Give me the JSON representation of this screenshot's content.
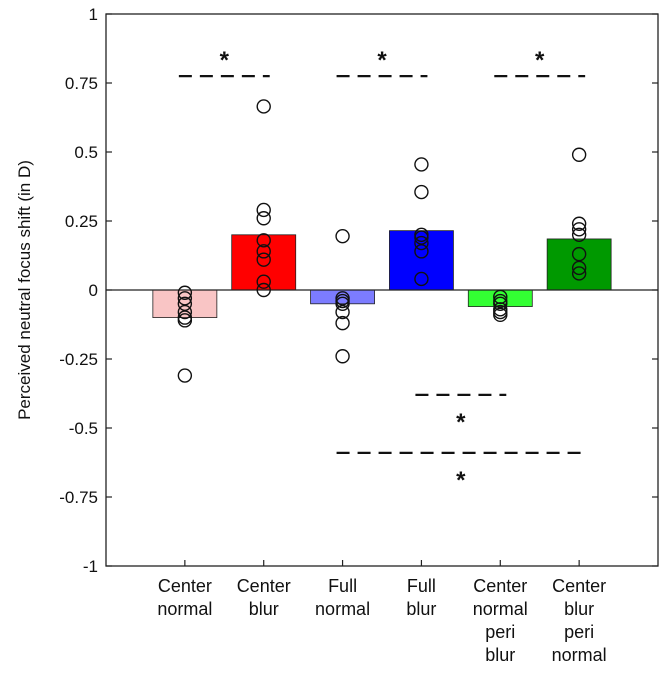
{
  "chart_data": {
    "type": "bar",
    "ylabel": "Perceived neutral focus shift (in D)",
    "ylim": [
      -1,
      1
    ],
    "yticks": [
      {
        "value": 1,
        "label": "1"
      },
      {
        "value": 0.75,
        "label": "0.75"
      },
      {
        "value": 0.5,
        "label": "0.5"
      },
      {
        "value": 0.25,
        "label": "0.25"
      },
      {
        "value": 0,
        "label": "0"
      },
      {
        "value": -0.25,
        "label": "-0.25"
      },
      {
        "value": -0.5,
        "label": "-0.5"
      },
      {
        "value": -0.75,
        "label": "-0.75"
      },
      {
        "value": -1,
        "label": "-1"
      }
    ],
    "categories": [
      [
        "Center",
        "normal"
      ],
      [
        "Center",
        "blur"
      ],
      [
        "Full",
        "normal"
      ],
      [
        "Full",
        "blur"
      ],
      [
        "Center",
        "normal",
        "peri",
        "blur"
      ],
      [
        "Center",
        "blur",
        "peri",
        "normal"
      ]
    ],
    "values": [
      -0.1,
      0.2,
      -0.05,
      0.215,
      -0.06,
      0.185
    ],
    "colors": [
      "#f9c5c5",
      "#ff0000",
      "#7c7cff",
      "#0000ff",
      "#33ff33",
      "#009900"
    ],
    "points": [
      [
        -0.31,
        -0.11,
        -0.1,
        -0.08,
        -0.05,
        -0.03,
        -0.01
      ],
      [
        0.0,
        0.03,
        0.11,
        0.14,
        0.18,
        0.26,
        0.29,
        0.665
      ],
      [
        -0.24,
        -0.12,
        -0.08,
        -0.05,
        -0.04,
        -0.03,
        0.195
      ],
      [
        0.04,
        0.14,
        0.17,
        0.19,
        0.2,
        0.355,
        0.455
      ],
      [
        -0.09,
        -0.08,
        -0.07,
        -0.05,
        -0.04,
        -0.025
      ],
      [
        0.06,
        0.08,
        0.13,
        0.2,
        0.22,
        0.24,
        0.49
      ]
    ],
    "significance": [
      {
        "from": 1,
        "to": 2,
        "y": 0.775,
        "label": "*"
      },
      {
        "from": 3,
        "to": 4,
        "y": 0.775,
        "label": "*"
      },
      {
        "from": 5,
        "to": 6,
        "y": 0.775,
        "label": "*"
      },
      {
        "from": 4,
        "to": 5,
        "y": -0.38,
        "label": "*"
      },
      {
        "from": 3,
        "to": 6,
        "y": -0.59,
        "label": "*"
      }
    ]
  }
}
